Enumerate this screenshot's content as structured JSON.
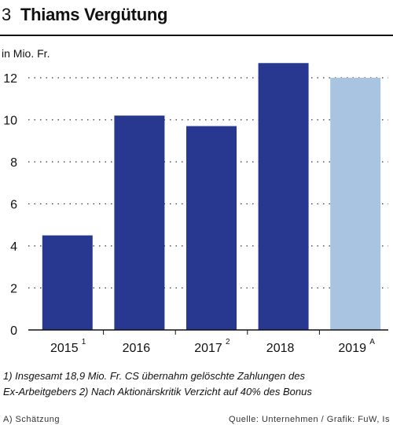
{
  "header": {
    "number": "3",
    "title": "Thiams Vergütung"
  },
  "unit_label": "in Mio. Fr.",
  "colors": {
    "bar_actual": "#283891",
    "bar_estimate": "#a8c4e0",
    "grid": "#333333"
  },
  "chart_data": {
    "type": "bar",
    "title": "Thiams Vergütung",
    "ylabel": "in Mio. Fr.",
    "xlabel": "",
    "categories": [
      "2015",
      "2016",
      "2017",
      "2018",
      "2019"
    ],
    "category_notes": [
      "1",
      "",
      "2",
      "",
      "A"
    ],
    "values": [
      4.5,
      10.2,
      9.7,
      12.7,
      12.0
    ],
    "estimated": [
      false,
      false,
      false,
      false,
      true
    ],
    "ylim": [
      0,
      12.5
    ],
    "yticks": [
      0,
      2,
      4,
      6,
      8,
      10,
      12
    ],
    "grid": "dotted horizontal",
    "legend": "none"
  },
  "footnotes": {
    "line1": "1) Insgesamt  18,9 Mio. Fr. CS übernahm gelöschte Zahlungen des",
    "line2": "Ex-Arbeitgebers   2) Nach Aktionärskritik Verzicht auf 40% des Bonus"
  },
  "estimate_note": "A) Schätzung",
  "source": "Quelle: Unternehmen / Grafik: FuW, Is"
}
